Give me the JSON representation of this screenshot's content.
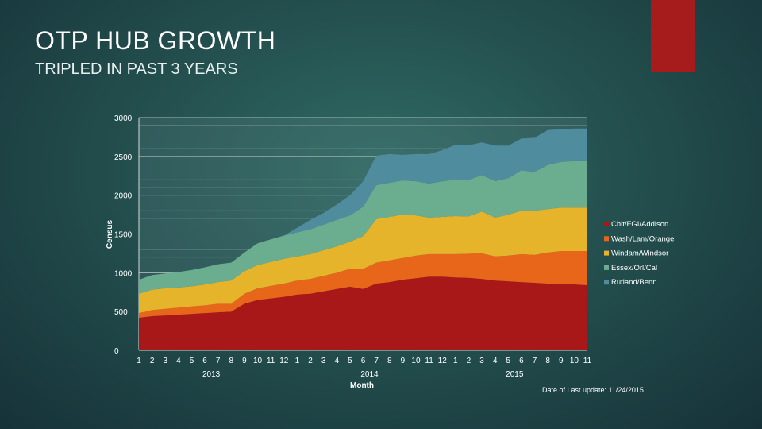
{
  "slide": {
    "title": "OTP HUB GROWTH",
    "subtitle": "TRIPLED IN PAST 3 YEARS",
    "accent_color": "#a61c1c",
    "update_note": "Date of Last update: 11/24/2015"
  },
  "chart_data": {
    "type": "area",
    "stacked": true,
    "title": "",
    "xlabel": "Month",
    "ylabel": "Census",
    "ylim": [
      0,
      3000
    ],
    "yticks": [
      0,
      500,
      1000,
      1500,
      2000,
      2500,
      3000
    ],
    "grid": true,
    "legend_position": "right",
    "x": [
      "1",
      "2",
      "3",
      "4",
      "5",
      "6",
      "7",
      "8",
      "9",
      "10",
      "11",
      "12",
      "1",
      "2",
      "3",
      "4",
      "5",
      "6",
      "7",
      "8",
      "9",
      "10",
      "11",
      "12",
      "1",
      "2",
      "3",
      "4",
      "5",
      "6",
      "7",
      "8",
      "9",
      "10",
      "11"
    ],
    "year_labels": [
      {
        "label": "2013",
        "index": 5
      },
      {
        "label": "2014",
        "index": 17
      },
      {
        "label": "2015",
        "index": 28
      }
    ],
    "series": [
      {
        "name": "Chit/FGI/Addison",
        "color": "#a81818",
        "values": [
          420,
          440,
          450,
          460,
          470,
          480,
          490,
          500,
          600,
          650,
          670,
          690,
          720,
          730,
          760,
          790,
          820,
          790,
          860,
          880,
          910,
          930,
          950,
          950,
          940,
          935,
          920,
          900,
          890,
          880,
          870,
          860,
          860,
          850,
          840
        ]
      },
      {
        "name": "Wash/Lam/Orange",
        "color": "#e8661a",
        "values": [
          60,
          80,
          85,
          90,
          95,
          100,
          110,
          100,
          130,
          150,
          160,
          170,
          180,
          190,
          200,
          210,
          230,
          260,
          270,
          280,
          280,
          290,
          290,
          290,
          300,
          310,
          330,
          310,
          330,
          360,
          360,
          400,
          420,
          430,
          440
        ]
      },
      {
        "name": "Windam/Windsor",
        "color": "#e6b42a",
        "values": [
          250,
          260,
          265,
          260,
          260,
          270,
          280,
          300,
          290,
          300,
          310,
          320,
          310,
          320,
          330,
          340,
          350,
          420,
          560,
          560,
          560,
          520,
          470,
          480,
          490,
          480,
          540,
          500,
          530,
          560,
          570,
          560,
          560,
          560,
          560
        ]
      },
      {
        "name": "Essex/Orl/Cal",
        "color": "#6aae8f",
        "values": [
          180,
          190,
          190,
          200,
          210,
          220,
          230,
          230,
          240,
          280,
          290,
          300,
          310,
          320,
          330,
          340,
          340,
          380,
          440,
          440,
          440,
          440,
          440,
          460,
          470,
          470,
          470,
          470,
          470,
          520,
          500,
          570,
          590,
          600,
          600
        ]
      },
      {
        "name": "Rutland/Benn",
        "color": "#4e8c9e",
        "values": [
          0,
          0,
          0,
          0,
          0,
          0,
          0,
          0,
          0,
          0,
          0,
          0,
          60,
          120,
          150,
          200,
          260,
          330,
          380,
          370,
          330,
          350,
          380,
          400,
          450,
          450,
          420,
          460,
          420,
          410,
          440,
          450,
          420,
          420,
          420
        ]
      }
    ]
  }
}
